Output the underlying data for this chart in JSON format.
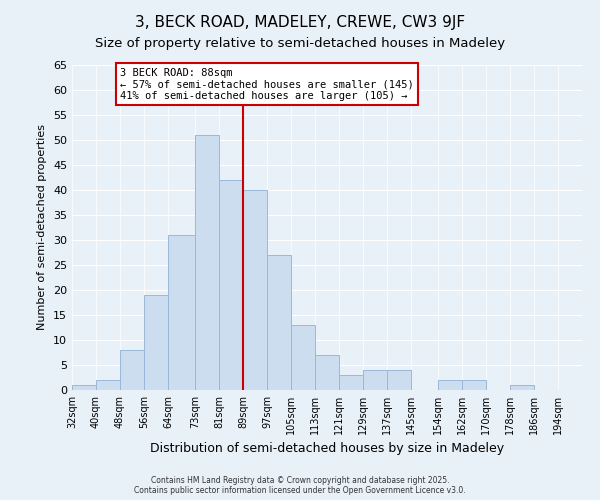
{
  "title": "3, BECK ROAD, MADELEY, CREWE, CW3 9JF",
  "subtitle": "Size of property relative to semi-detached houses in Madeley",
  "xlabel": "Distribution of semi-detached houses by size in Madeley",
  "ylabel": "Number of semi-detached properties",
  "bin_labels": [
    "32sqm",
    "40sqm",
    "48sqm",
    "56sqm",
    "64sqm",
    "73sqm",
    "81sqm",
    "89sqm",
    "97sqm",
    "105sqm",
    "113sqm",
    "121sqm",
    "129sqm",
    "137sqm",
    "145sqm",
    "154sqm",
    "162sqm",
    "170sqm",
    "178sqm",
    "186sqm",
    "194sqm"
  ],
  "bin_edges": [
    32,
    40,
    48,
    56,
    64,
    73,
    81,
    89,
    97,
    105,
    113,
    121,
    129,
    137,
    145,
    154,
    162,
    170,
    178,
    186,
    194
  ],
  "counts": [
    1,
    2,
    8,
    19,
    31,
    51,
    42,
    40,
    27,
    13,
    7,
    3,
    4,
    4,
    0,
    2,
    2,
    0,
    1,
    0,
    0
  ],
  "bar_color": "#cdddf0",
  "bar_edge_color": "#9ab8d8",
  "reference_line_x": 89,
  "reference_label": "3 BECK ROAD: 88sqm",
  "annotation_line1": "← 57% of semi-detached houses are smaller (145)",
  "annotation_line2": "41% of semi-detached houses are larger (105) →",
  "annotation_box_color": "#ffffff",
  "annotation_border_color": "#cc0000",
  "ref_line_color": "#cc0000",
  "ylim": [
    0,
    65
  ],
  "yticks": [
    0,
    5,
    10,
    15,
    20,
    25,
    30,
    35,
    40,
    45,
    50,
    55,
    60,
    65
  ],
  "background_color": "#e8f0f8",
  "grid_color": "#ffffff",
  "footer_line1": "Contains HM Land Registry data © Crown copyright and database right 2025.",
  "footer_line2": "Contains public sector information licensed under the Open Government Licence v3.0.",
  "title_fontsize": 11,
  "subtitle_fontsize": 9.5,
  "ylabel_fontsize": 8,
  "xlabel_fontsize": 9
}
